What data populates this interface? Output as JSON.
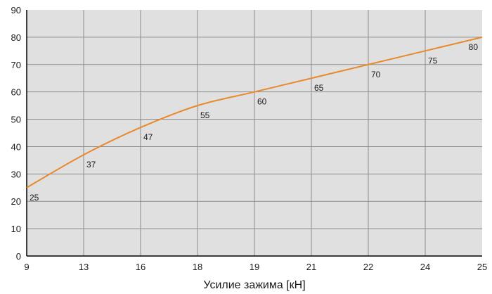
{
  "chart_data": {
    "type": "line",
    "title": "",
    "xlabel": "Усилие зажима [кН]",
    "ylabel": "",
    "categories": [
      "9",
      "13",
      "16",
      "18",
      "19",
      "21",
      "22",
      "24",
      "25"
    ],
    "series": [
      {
        "values": [
          25,
          37,
          47,
          55,
          60,
          65,
          70,
          75,
          80
        ]
      }
    ],
    "data_labels": [
      "25",
      "37",
      "47",
      "55",
      "60",
      "65",
      "70",
      "75",
      "80"
    ],
    "yticks": [
      "0",
      "10",
      "20",
      "30",
      "40",
      "50",
      "60",
      "70",
      "80",
      "90"
    ],
    "ylim": [
      0,
      90
    ],
    "grid": true,
    "colors": {
      "line": "#e8892b",
      "plot_background": "#e0e0e0",
      "grid": "#8c8c8c",
      "axis": "#000000"
    }
  }
}
